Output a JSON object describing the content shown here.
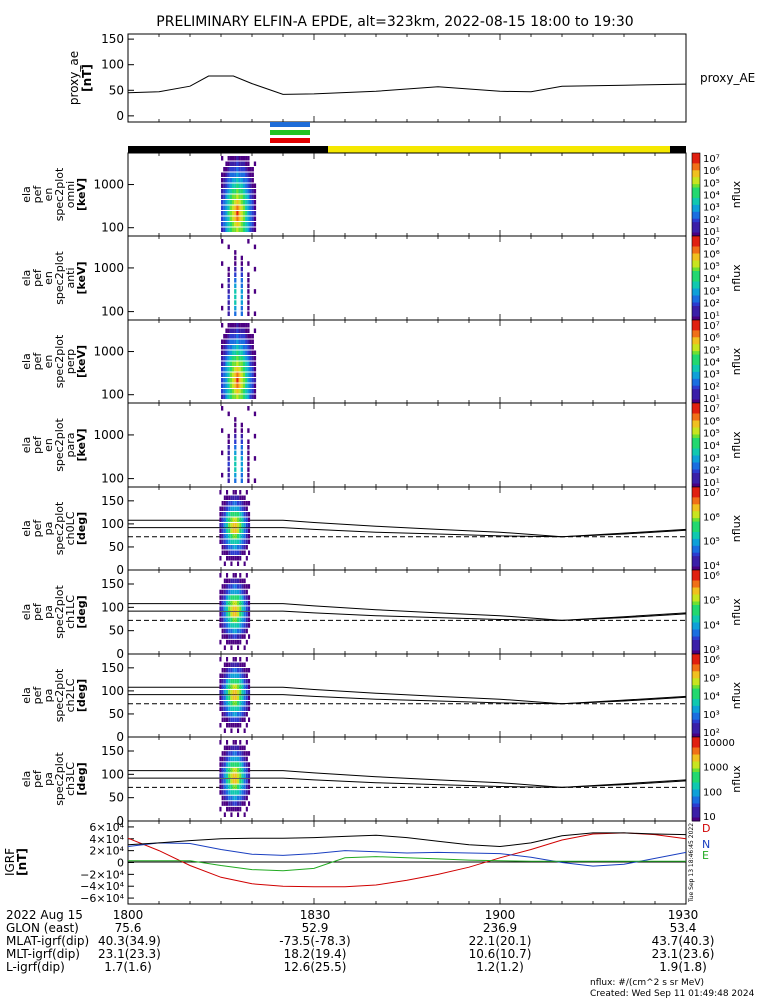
{
  "title": "PRELIMINARY ELFIN-A EPDE, alt=323km, 2022-08-15 18:00 to 19:30",
  "colors": {
    "black": "#000000",
    "yellow": "#f5e800",
    "blue": "#1e6cd8",
    "green": "#22c322",
    "red": "#e00000",
    "D": "#d00000",
    "N": "#1a3fc0",
    "E": "#22aa22"
  },
  "ae_panel": {
    "ylabel1": "proxy_ae",
    "ylabel2": "[nT]",
    "right_label": "proxy_AE",
    "yticks": [
      "150",
      "100",
      "50",
      "0"
    ]
  },
  "spec_panels": [
    {
      "ylabel": [
        "ela",
        "pef",
        "en",
        "spec2plot",
        "omni",
        "[keV]"
      ],
      "yticks": [
        "1000",
        "100"
      ],
      "cbar_ticks": [
        "10⁷",
        "10⁶",
        "10⁵",
        "10⁴",
        "10³",
        "10²",
        "10¹"
      ]
    },
    {
      "ylabel": [
        "ela",
        "pef",
        "en",
        "spec2plot",
        "anti",
        "[keV]"
      ],
      "yticks": [
        "1000",
        "100"
      ],
      "cbar_ticks": [
        "10⁷",
        "10⁶",
        "10⁵",
        "10⁴",
        "10³",
        "10²",
        "10¹"
      ]
    },
    {
      "ylabel": [
        "ela",
        "pef",
        "en",
        "spec2plot",
        "perp",
        "[keV]"
      ],
      "yticks": [
        "1000",
        "100"
      ],
      "cbar_ticks": [
        "10⁷",
        "10⁶",
        "10⁵",
        "10⁴",
        "10³",
        "10²",
        "10¹"
      ]
    },
    {
      "ylabel": [
        "ela",
        "pef",
        "en",
        "spec2plot",
        "para",
        "[keV]"
      ],
      "yticks": [
        "1000",
        "100"
      ],
      "cbar_ticks": [
        "10⁷",
        "10⁶",
        "10⁵",
        "10⁴",
        "10³",
        "10²",
        "10¹"
      ]
    }
  ],
  "pa_panels": [
    {
      "ylabel": [
        "ela",
        "pef",
        "pa",
        "spec2plot",
        "ch0LC",
        "[deg]"
      ],
      "yticks": [
        "150",
        "100",
        "50",
        "0"
      ],
      "cbar_ticks": [
        "10⁷",
        "10⁶",
        "10⁵",
        "10⁴"
      ]
    },
    {
      "ylabel": [
        "ela",
        "pef",
        "pa",
        "spec2plot",
        "ch1LC",
        "[deg]"
      ],
      "yticks": [
        "150",
        "100",
        "50",
        "0"
      ],
      "cbar_ticks": [
        "10⁶",
        "10⁵",
        "10⁴",
        "10³"
      ]
    },
    {
      "ylabel": [
        "ela",
        "pef",
        "pa",
        "spec2plot",
        "ch2LC",
        "[deg]"
      ],
      "yticks": [
        "150",
        "100",
        "50",
        "0"
      ],
      "cbar_ticks": [
        "10⁶",
        "10⁵",
        "10⁴",
        "10³",
        "10²"
      ]
    },
    {
      "ylabel": [
        "ela",
        "pef",
        "pa",
        "spec2plot",
        "ch3LC",
        "[deg]"
      ],
      "yticks": [
        "150",
        "100",
        "50",
        "0"
      ],
      "cbar_ticks": [
        "10000",
        "1000",
        "100",
        "10"
      ]
    }
  ],
  "cbar_label": "nflux",
  "igrf_panel": {
    "ylabel1": "IGRF",
    "ylabel2": "[nT]",
    "yticks": [
      "6×10⁴",
      "4×10⁴",
      "2×10⁴",
      "0",
      "−2×10⁴",
      "−4×10⁴",
      "−6×10⁴"
    ],
    "legend": [
      "D",
      "N",
      "E"
    ],
    "side_text": "Tue Sep 13 18:46:45 2022"
  },
  "footer": {
    "rows": [
      {
        "label": "2022 Aug 15",
        "v": [
          "1800",
          "1830",
          "1900",
          "1930"
        ]
      },
      {
        "label": "GLON (east)",
        "v": [
          "75.6",
          "52.9",
          "236.9",
          "53.4"
        ]
      },
      {
        "label": "MLAT-igrf(dip)",
        "v": [
          "40.3(34.9)",
          "-73.5(-78.3)",
          "22.1(20.1)",
          "43.7(40.3)"
        ]
      },
      {
        "label": "MLT-igrf(dip)",
        "v": [
          "23.1(23.3)",
          "18.2(19.4)",
          "10.6(10.7)",
          "23.1(23.6)"
        ]
      },
      {
        "label": "L-igrf(dip)",
        "v": [
          "1.7(1.6)",
          "12.6(25.5)",
          "1.2(1.2)",
          "1.9(1.8)"
        ]
      }
    ],
    "units": "nflux: #/(cm^2 s sr MeV)",
    "created": "Created: Wed Sep 11 01:49:48 2024"
  },
  "chart_data": [
    {
      "type": "line",
      "title": "PRELIMINARY ELFIN-A EPDE, alt=323km, 2022-08-15 18:00 to 19:30",
      "xlabel": "",
      "ylabel": "proxy_ae [nT]",
      "ylim": [
        0,
        150
      ],
      "x": [
        "18:00",
        "18:05",
        "18:10",
        "18:13",
        "18:17",
        "18:20",
        "18:25",
        "18:30",
        "18:40",
        "18:50",
        "19:00",
        "19:05",
        "19:10",
        "19:20",
        "19:30"
      ],
      "series": [
        {
          "name": "proxy_AE",
          "values": [
            45,
            47,
            58,
            78,
            78,
            63,
            42,
            43,
            48,
            57,
            48,
            47,
            58,
            60,
            62
          ]
        }
      ]
    },
    {
      "type": "line",
      "ylabel": "IGRF [nT]",
      "ylim": [
        -60000,
        60000
      ],
      "x": [
        "18:00",
        "18:05",
        "18:10",
        "18:15",
        "18:20",
        "18:25",
        "18:30",
        "18:35",
        "18:40",
        "18:45",
        "18:50",
        "18:55",
        "19:00",
        "19:05",
        "19:10",
        "19:15",
        "19:20",
        "19:25",
        "19:30"
      ],
      "series": [
        {
          "name": "D",
          "values": [
            41000,
            20000,
            -5000,
            -25000,
            -36000,
            -40000,
            -41000,
            -41000,
            -38000,
            -30000,
            -20000,
            -8000,
            8000,
            22000,
            38000,
            48000,
            50000,
            47000,
            40000
          ]
        },
        {
          "name": "N",
          "values": [
            27000,
            33000,
            32000,
            22000,
            14000,
            12000,
            15000,
            20000,
            18000,
            16000,
            17000,
            16000,
            15000,
            9000,
            0,
            -6000,
            -3000,
            7000,
            17000
          ]
        },
        {
          "name": "E",
          "values": [
            3000,
            3000,
            3000,
            -5000,
            -12000,
            -14000,
            -10000,
            8000,
            10000,
            8000,
            6000,
            4000,
            3000,
            2000,
            2000,
            2000,
            2000,
            2000,
            2000
          ]
        },
        {
          "name": "",
          "values": [
            30000,
            33000,
            37000,
            40000,
            41000,
            41000,
            42000,
            44000,
            46000,
            42000,
            36000,
            30000,
            27000,
            33000,
            45000,
            50000,
            50000,
            48000,
            47000
          ]
        }
      ]
    },
    {
      "type": "line",
      "ylabel": "pitch-angle reference lines [deg]",
      "ylim": [
        0,
        180
      ],
      "x": [
        "18:00",
        "18:15",
        "18:20",
        "18:25",
        "18:30",
        "18:40",
        "18:50",
        "19:00",
        "19:10",
        "19:20",
        "19:30"
      ],
      "series": [
        {
          "name": "",
          "values": [
            108,
            108,
            108,
            108,
            103,
            95,
            88,
            82,
            72,
            80,
            88
          ]
        },
        {
          "name": "",
          "values": [
            92,
            92,
            92,
            92,
            88,
            82,
            78,
            74,
            72,
            78,
            86
          ]
        },
        {
          "name": "",
          "values": [
            72,
            72,
            72,
            72,
            72,
            72,
            72,
            72,
            72,
            72,
            72
          ]
        }
      ]
    }
  ]
}
